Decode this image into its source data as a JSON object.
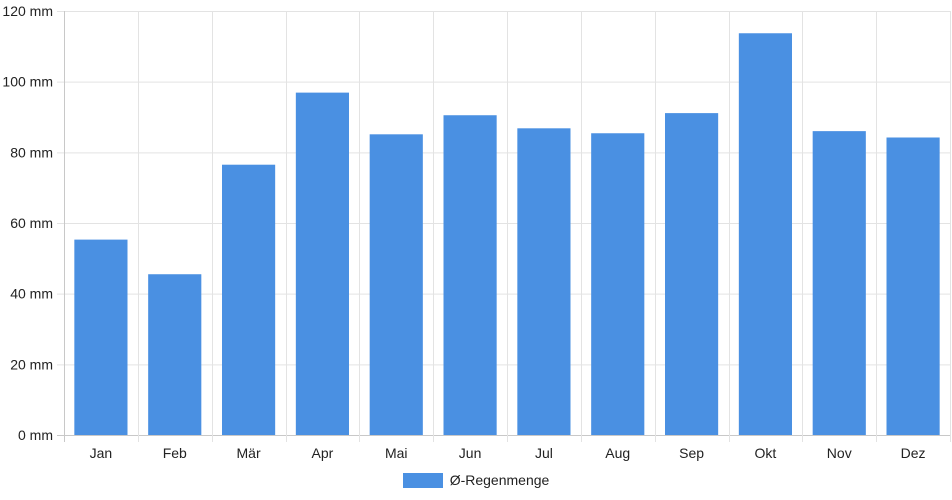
{
  "chart_data": {
    "type": "bar",
    "categories": [
      "Jan",
      "Feb",
      "Mär",
      "Apr",
      "Mai",
      "Jun",
      "Jul",
      "Aug",
      "Sep",
      "Okt",
      "Nov",
      "Dez"
    ],
    "series": [
      {
        "name": "Ø-Regenmenge",
        "values": [
          55.3,
          45.5,
          76.5,
          96.9,
          85.1,
          90.5,
          86.8,
          85.4,
          91.1,
          113.7,
          86.0,
          84.2
        ],
        "color": "#4a90e2"
      }
    ],
    "ylim": [
      0,
      120
    ],
    "yticks": [
      0,
      20,
      40,
      60,
      80,
      100,
      120
    ],
    "y_tick_suffix": " mm",
    "grid": true,
    "legend_position": "bottom-center"
  }
}
